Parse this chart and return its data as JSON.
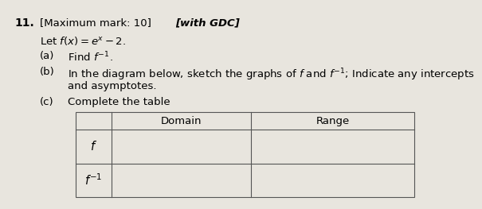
{
  "question_number": "11.",
  "header_text": "[Maximum mark: 10]",
  "header_italic": "[with GDC]",
  "intro": "Let $f(x) = e^x - 2$.",
  "part_a_label": "(a)",
  "part_a_text": "Find $f^{-1}$.",
  "part_b_label": "(b)",
  "part_b_line1": "In the diagram below, sketch the graphs of $f$ and $f^{-1}$; Indicate any intercepts",
  "part_b_line2": "and asymptotes.",
  "part_c_label": "(c)",
  "part_c_text": "Complete the table",
  "col_header_1": "Domain",
  "col_header_2": "Range",
  "row1_label": "$f$",
  "row2_label": "$f^{-1}$",
  "bg_color": "#e8e5de",
  "font_size": 9.5
}
